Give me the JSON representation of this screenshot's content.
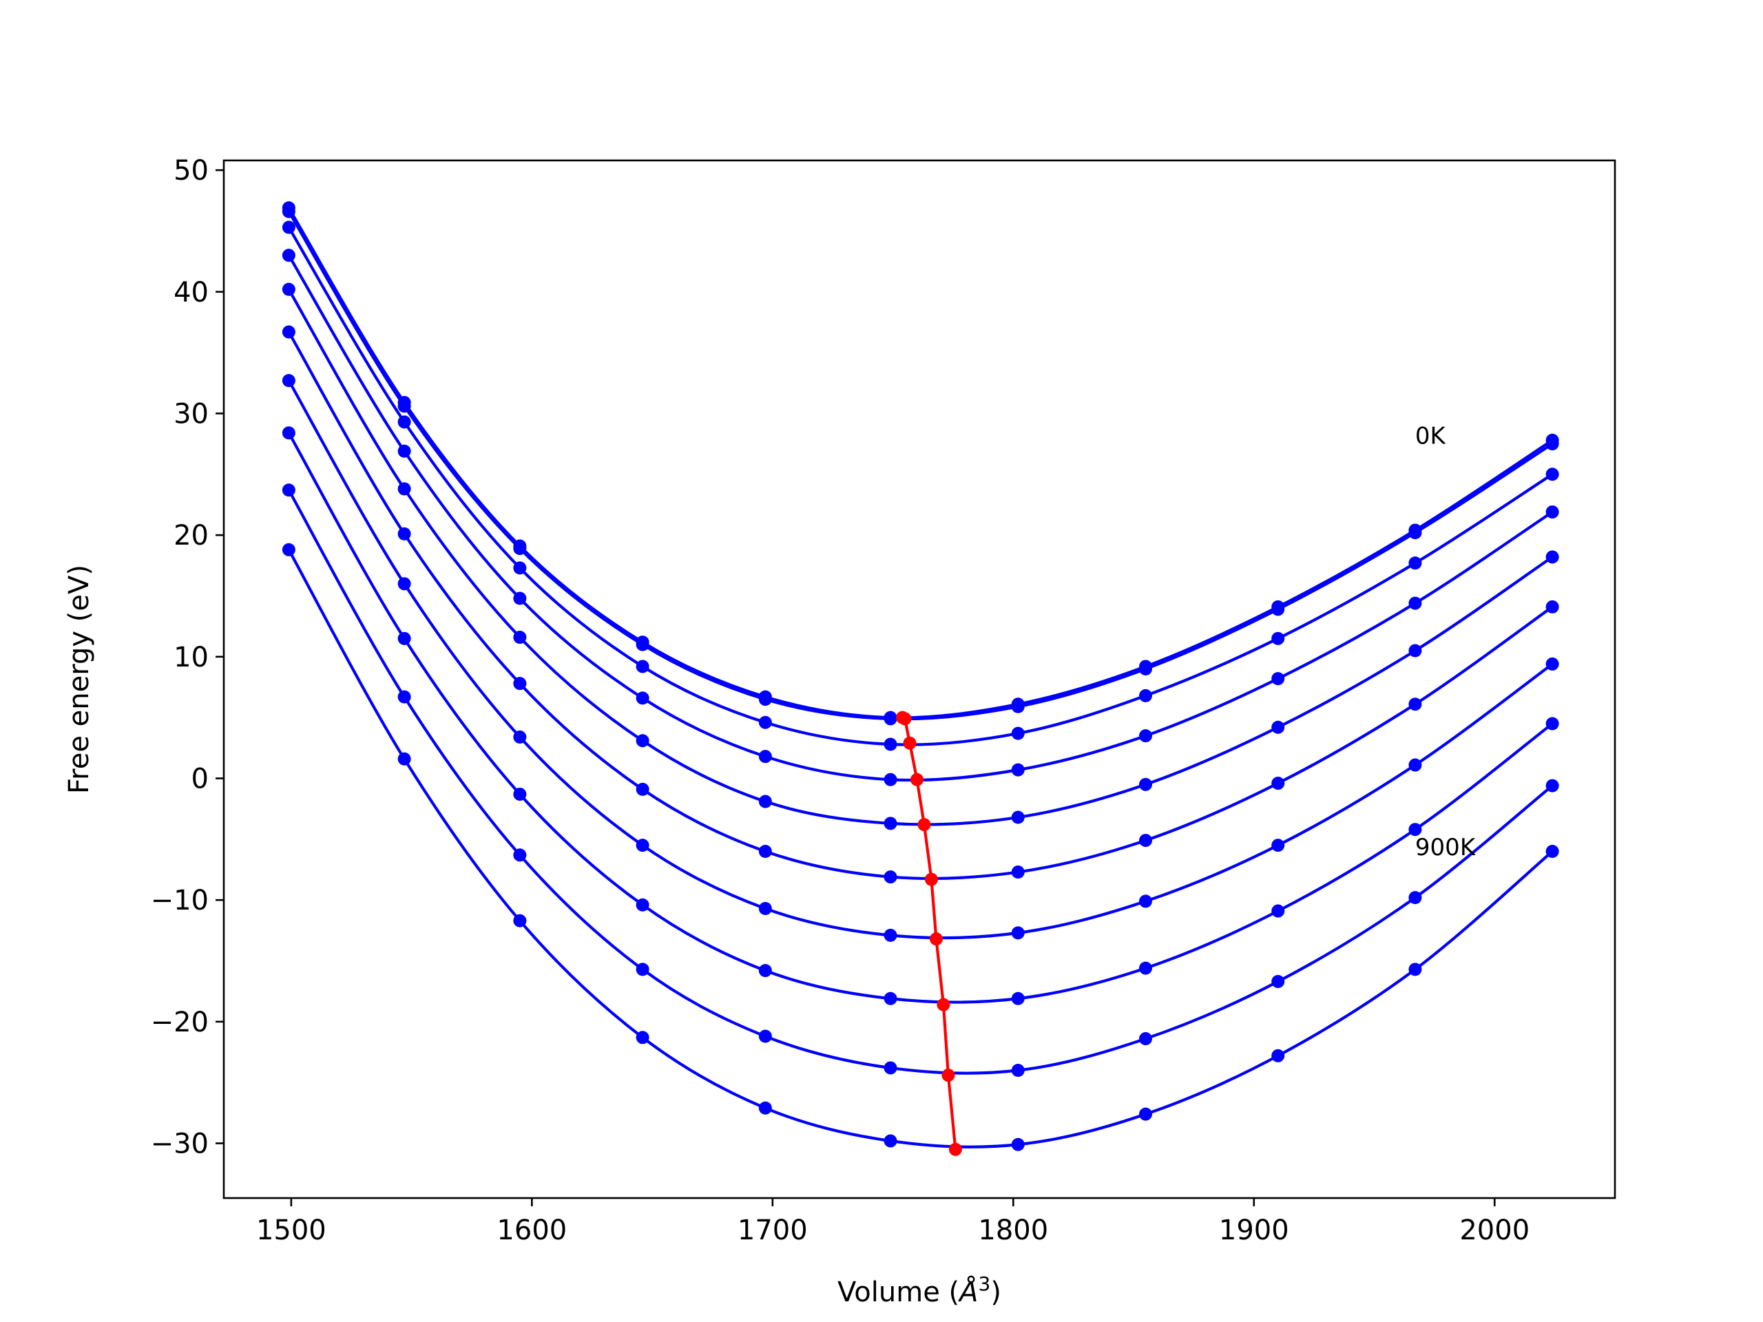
{
  "chart_data": {
    "type": "line",
    "xlabel": "Volume (",
    "xlabel_unit": "Å",
    "xlabel_exp": "3",
    "xlabel_close": ")",
    "ylabel": "Free energy (eV)",
    "xlim": [
      1472,
      2050
    ],
    "ylim": [
      -34.5,
      50.8
    ],
    "xticks": [
      1500,
      1600,
      1700,
      1800,
      1900,
      2000
    ],
    "yticks": [
      -30,
      -20,
      -10,
      0,
      10,
      20,
      30,
      40,
      50
    ],
    "grid": false,
    "annotations": [
      {
        "text": "0K",
        "x": 1967,
        "y": 27.5
      },
      {
        "text": "900K",
        "x": 1967,
        "y": -6.3
      }
    ],
    "colors": {
      "curves": "#0000ff",
      "minimum_line": "#ff0000"
    },
    "x": [
      1499,
      1547,
      1595,
      1646,
      1697,
      1749,
      1802,
      1855,
      1910,
      1967,
      2024
    ],
    "series": [
      {
        "values": [
          46.9,
          30.9,
          19.1,
          11.2,
          6.7,
          5.0,
          6.1,
          9.2,
          14.1,
          20.4,
          27.8
        ]
      },
      {
        "values": [
          46.6,
          30.6,
          18.9,
          11.0,
          6.5,
          4.9,
          5.9,
          9.0,
          13.9,
          20.2,
          27.5
        ]
      },
      {
        "values": [
          45.3,
          29.3,
          17.3,
          9.2,
          4.6,
          2.8,
          3.7,
          6.8,
          11.5,
          17.7,
          25.0
        ]
      },
      {
        "values": [
          43.0,
          26.9,
          14.8,
          6.6,
          1.8,
          -0.1,
          0.7,
          3.5,
          8.2,
          14.4,
          21.9
        ]
      },
      {
        "values": [
          40.2,
          23.8,
          11.6,
          3.1,
          -1.9,
          -3.7,
          -3.2,
          -0.5,
          4.2,
          10.5,
          18.2
        ]
      },
      {
        "values": [
          36.7,
          20.1,
          7.8,
          -0.9,
          -6.0,
          -8.1,
          -7.7,
          -5.1,
          -0.4,
          6.1,
          14.1
        ]
      },
      {
        "values": [
          32.7,
          16.0,
          3.4,
          -5.5,
          -10.7,
          -12.9,
          -12.7,
          -10.1,
          -5.5,
          1.1,
          9.4
        ]
      },
      {
        "values": [
          28.4,
          11.5,
          -1.3,
          -10.4,
          -15.8,
          -18.1,
          -18.1,
          -15.6,
          -10.9,
          -4.2,
          4.5
        ]
      },
      {
        "values": [
          23.7,
          6.7,
          -6.3,
          -15.7,
          -21.2,
          -23.8,
          -24.0,
          -21.4,
          -16.7,
          -9.8,
          -0.6
        ]
      },
      {
        "values": [
          18.8,
          1.6,
          -11.7,
          -21.3,
          -27.1,
          -29.8,
          -30.1,
          -27.6,
          -22.8,
          -15.7,
          -6.0
        ]
      }
    ],
    "minimum_line": {
      "x": [
        1754,
        1755,
        1757,
        1760,
        1763,
        1766,
        1768,
        1771,
        1773,
        1776
      ],
      "y": [
        5.0,
        4.9,
        2.9,
        -0.1,
        -3.8,
        -8.3,
        -13.2,
        -18.6,
        -24.4,
        -30.5
      ]
    }
  }
}
